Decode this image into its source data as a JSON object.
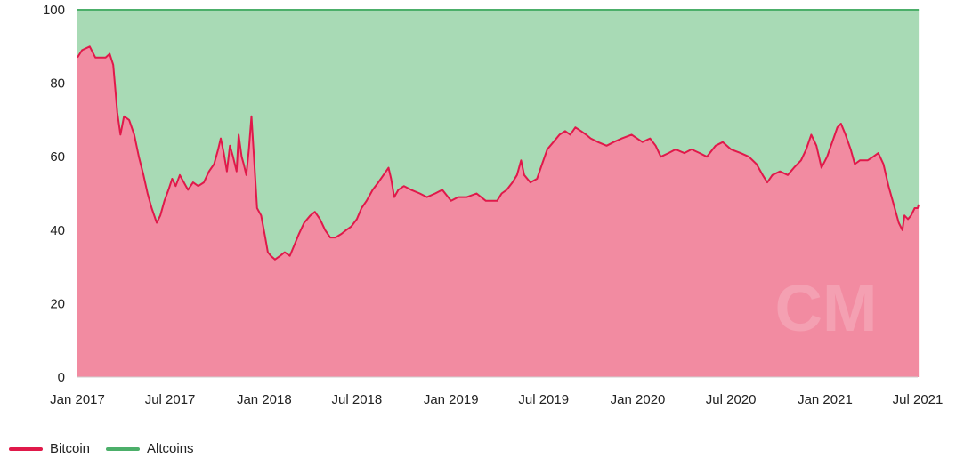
{
  "chart_data": {
    "type": "area",
    "stacked": true,
    "ylim": [
      0,
      100
    ],
    "y_ticks": [
      0,
      20,
      40,
      60,
      80,
      100
    ],
    "x_range": [
      "2017-01-01",
      "2021-07-01"
    ],
    "x_ticks": [
      {
        "date": "2017-01-01",
        "label": "Jan 2017"
      },
      {
        "date": "2017-07-01",
        "label": "Jul 2017"
      },
      {
        "date": "2018-01-01",
        "label": "Jan 2018"
      },
      {
        "date": "2018-07-01",
        "label": "Jul 2018"
      },
      {
        "date": "2019-01-01",
        "label": "Jan 2019"
      },
      {
        "date": "2019-07-01",
        "label": "Jul 2019"
      },
      {
        "date": "2020-01-01",
        "label": "Jan 2020"
      },
      {
        "date": "2020-07-01",
        "label": "Jul 2020"
      },
      {
        "date": "2021-01-01",
        "label": "Jan 2021"
      },
      {
        "date": "2021-07-01",
        "label": "Jul 2021"
      }
    ],
    "grid": true,
    "legend_position": "bottom-left",
    "watermark": "CM",
    "series": [
      {
        "name": "Bitcoin",
        "line_color": "#e0194a",
        "fill_color": "#f28ba1",
        "points": [
          [
            "2017-01-01",
            87
          ],
          [
            "2017-01-10",
            89
          ],
          [
            "2017-01-25",
            90
          ],
          [
            "2017-02-05",
            87
          ],
          [
            "2017-02-25",
            87
          ],
          [
            "2017-03-05",
            88
          ],
          [
            "2017-03-12",
            85
          ],
          [
            "2017-03-20",
            72
          ],
          [
            "2017-03-26",
            66
          ],
          [
            "2017-04-02",
            71
          ],
          [
            "2017-04-12",
            70
          ],
          [
            "2017-04-22",
            66
          ],
          [
            "2017-05-01",
            60
          ],
          [
            "2017-05-10",
            55
          ],
          [
            "2017-05-18",
            50
          ],
          [
            "2017-05-26",
            46
          ],
          [
            "2017-06-05",
            42
          ],
          [
            "2017-06-12",
            44
          ],
          [
            "2017-06-20",
            48
          ],
          [
            "2017-06-28",
            51
          ],
          [
            "2017-07-05",
            54
          ],
          [
            "2017-07-12",
            52
          ],
          [
            "2017-07-20",
            55
          ],
          [
            "2017-07-28",
            53
          ],
          [
            "2017-08-05",
            51
          ],
          [
            "2017-08-15",
            53
          ],
          [
            "2017-08-25",
            52
          ],
          [
            "2017-09-05",
            53
          ],
          [
            "2017-09-15",
            56
          ],
          [
            "2017-09-25",
            58
          ],
          [
            "2017-10-03",
            62
          ],
          [
            "2017-10-08",
            65
          ],
          [
            "2017-10-14",
            61
          ],
          [
            "2017-10-20",
            56
          ],
          [
            "2017-10-26",
            63
          ],
          [
            "2017-11-01",
            60
          ],
          [
            "2017-11-08",
            56
          ],
          [
            "2017-11-12",
            66
          ],
          [
            "2017-11-18",
            60
          ],
          [
            "2017-11-22",
            58
          ],
          [
            "2017-11-27",
            55
          ],
          [
            "2017-12-02",
            62
          ],
          [
            "2017-12-07",
            71
          ],
          [
            "2017-12-12",
            60
          ],
          [
            "2017-12-18",
            46
          ],
          [
            "2017-12-26",
            44
          ],
          [
            "2018-01-03",
            38
          ],
          [
            "2018-01-08",
            34
          ],
          [
            "2018-01-14",
            33
          ],
          [
            "2018-01-22",
            32
          ],
          [
            "2018-02-01",
            33
          ],
          [
            "2018-02-10",
            34
          ],
          [
            "2018-02-20",
            33
          ],
          [
            "2018-03-01",
            36
          ],
          [
            "2018-03-10",
            39
          ],
          [
            "2018-03-20",
            42
          ],
          [
            "2018-04-01",
            44
          ],
          [
            "2018-04-10",
            45
          ],
          [
            "2018-04-20",
            43
          ],
          [
            "2018-04-30",
            40
          ],
          [
            "2018-05-10",
            38
          ],
          [
            "2018-05-20",
            38
          ],
          [
            "2018-06-01",
            39
          ],
          [
            "2018-06-10",
            40
          ],
          [
            "2018-06-20",
            41
          ],
          [
            "2018-07-01",
            43
          ],
          [
            "2018-07-10",
            46
          ],
          [
            "2018-07-20",
            48
          ],
          [
            "2018-08-01",
            51
          ],
          [
            "2018-08-12",
            53
          ],
          [
            "2018-08-22",
            55
          ],
          [
            "2018-09-01",
            57
          ],
          [
            "2018-09-06",
            54
          ],
          [
            "2018-09-12",
            49
          ],
          [
            "2018-09-20",
            51
          ],
          [
            "2018-10-01",
            52
          ],
          [
            "2018-10-15",
            51
          ],
          [
            "2018-11-01",
            50
          ],
          [
            "2018-11-15",
            49
          ],
          [
            "2018-12-01",
            50
          ],
          [
            "2018-12-15",
            51
          ],
          [
            "2019-01-01",
            48
          ],
          [
            "2019-01-15",
            49
          ],
          [
            "2019-02-01",
            49
          ],
          [
            "2019-02-20",
            50
          ],
          [
            "2019-03-10",
            48
          ],
          [
            "2019-04-01",
            48
          ],
          [
            "2019-04-10",
            50
          ],
          [
            "2019-04-20",
            51
          ],
          [
            "2019-05-01",
            53
          ],
          [
            "2019-05-10",
            55
          ],
          [
            "2019-05-18",
            59
          ],
          [
            "2019-05-24",
            55
          ],
          [
            "2019-06-05",
            53
          ],
          [
            "2019-06-18",
            54
          ],
          [
            "2019-06-28",
            58
          ],
          [
            "2019-07-08",
            62
          ],
          [
            "2019-07-20",
            64
          ],
          [
            "2019-08-01",
            66
          ],
          [
            "2019-08-12",
            67
          ],
          [
            "2019-08-22",
            66
          ],
          [
            "2019-09-01",
            68
          ],
          [
            "2019-09-12",
            67
          ],
          [
            "2019-09-22",
            66
          ],
          [
            "2019-10-01",
            65
          ],
          [
            "2019-10-15",
            64
          ],
          [
            "2019-11-01",
            63
          ],
          [
            "2019-11-15",
            64
          ],
          [
            "2019-12-01",
            65
          ],
          [
            "2019-12-20",
            66
          ],
          [
            "2020-01-10",
            64
          ],
          [
            "2020-01-25",
            65
          ],
          [
            "2020-02-05",
            63
          ],
          [
            "2020-02-15",
            60
          ],
          [
            "2020-03-01",
            61
          ],
          [
            "2020-03-15",
            62
          ],
          [
            "2020-04-01",
            61
          ],
          [
            "2020-04-15",
            62
          ],
          [
            "2020-05-01",
            61
          ],
          [
            "2020-05-15",
            60
          ],
          [
            "2020-06-01",
            63
          ],
          [
            "2020-06-15",
            64
          ],
          [
            "2020-07-01",
            62
          ],
          [
            "2020-07-20",
            61
          ],
          [
            "2020-08-05",
            60
          ],
          [
            "2020-08-20",
            58
          ],
          [
            "2020-09-01",
            55
          ],
          [
            "2020-09-10",
            53
          ],
          [
            "2020-09-20",
            55
          ],
          [
            "2020-10-05",
            56
          ],
          [
            "2020-10-20",
            55
          ],
          [
            "2020-11-01",
            57
          ],
          [
            "2020-11-15",
            59
          ],
          [
            "2020-11-25",
            62
          ],
          [
            "2020-12-05",
            66
          ],
          [
            "2020-12-15",
            63
          ],
          [
            "2020-12-25",
            57
          ],
          [
            "2021-01-05",
            60
          ],
          [
            "2021-01-15",
            64
          ],
          [
            "2021-01-25",
            68
          ],
          [
            "2021-02-01",
            69
          ],
          [
            "2021-02-10",
            66
          ],
          [
            "2021-02-20",
            62
          ],
          [
            "2021-02-28",
            58
          ],
          [
            "2021-03-10",
            59
          ],
          [
            "2021-03-25",
            59
          ],
          [
            "2021-04-05",
            60
          ],
          [
            "2021-04-15",
            61
          ],
          [
            "2021-04-25",
            58
          ],
          [
            "2021-05-05",
            52
          ],
          [
            "2021-05-15",
            47
          ],
          [
            "2021-05-25",
            42
          ],
          [
            "2021-06-01",
            40
          ],
          [
            "2021-06-05",
            44
          ],
          [
            "2021-06-12",
            43
          ],
          [
            "2021-06-18",
            44
          ],
          [
            "2021-06-25",
            46
          ],
          [
            "2021-07-01",
            46
          ],
          [
            "2021-07-03",
            47
          ]
        ]
      },
      {
        "name": "Altcoins",
        "line_color": "#4caf6a",
        "fill_color": "#a8dab5",
        "value_rule": "fills from Bitcoin dominance up to 100"
      }
    ]
  }
}
